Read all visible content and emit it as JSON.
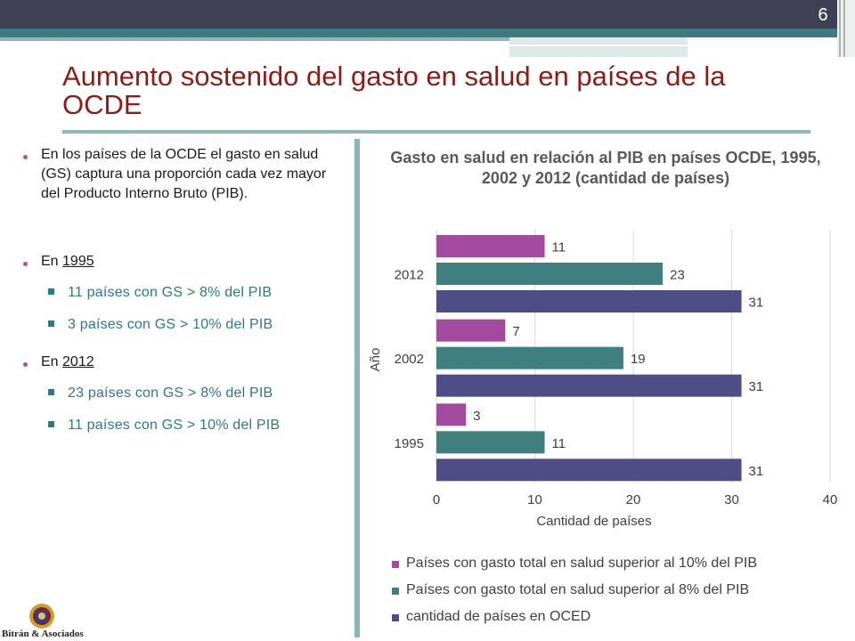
{
  "page_number": "6",
  "title": "Aumento sostenido del gasto en salud en países de la OCDE",
  "left_panel": {
    "bullet1": "En los países de la OCDE el gasto en salud (GS) captura una proporción cada vez mayor del Producto Interno Bruto (PIB).",
    "bullet2_prefix": "En ",
    "bullet2_year": "1995",
    "sub1": "11 países con GS > 8% del PIB",
    "sub2": "3 países con GS > 10% del PIB",
    "bullet3_prefix": "En ",
    "bullet3_year": "2012",
    "sub3": "23 países con GS > 8% del PIB",
    "sub4": "11 países con GS > 10% del PIB"
  },
  "logo_text": "Bitrán & Asociados",
  "colors": {
    "series1": "#a24b9e",
    "series2": "#3f7f7f",
    "series3": "#4f4d85",
    "title_red": "#8c1c14",
    "teal": "#2f7a82"
  },
  "chart_data": {
    "type": "bar",
    "orientation": "horizontal",
    "title": "Gasto en salud en relación al PIB en países OCDE, 1995, 2002 y 2012 (cantidad de países)",
    "categories": [
      "2012",
      "2002",
      "1995"
    ],
    "series": [
      {
        "name": "Países con gasto total en salud superior al 10% del PIB",
        "values": [
          11,
          7,
          3
        ]
      },
      {
        "name": "Países con gasto total en salud superior al 8% del PIB",
        "values": [
          23,
          19,
          11
        ]
      },
      {
        "name": "cantidad de países en OCED",
        "values": [
          31,
          31,
          31
        ]
      }
    ],
    "xlabel": "Cantidad de países",
    "ylabel": "Año",
    "xlim": [
      0,
      40
    ],
    "xticks": [
      "0",
      "10",
      "20",
      "30",
      "40"
    ],
    "grid": true,
    "legend_position": "bottom"
  }
}
